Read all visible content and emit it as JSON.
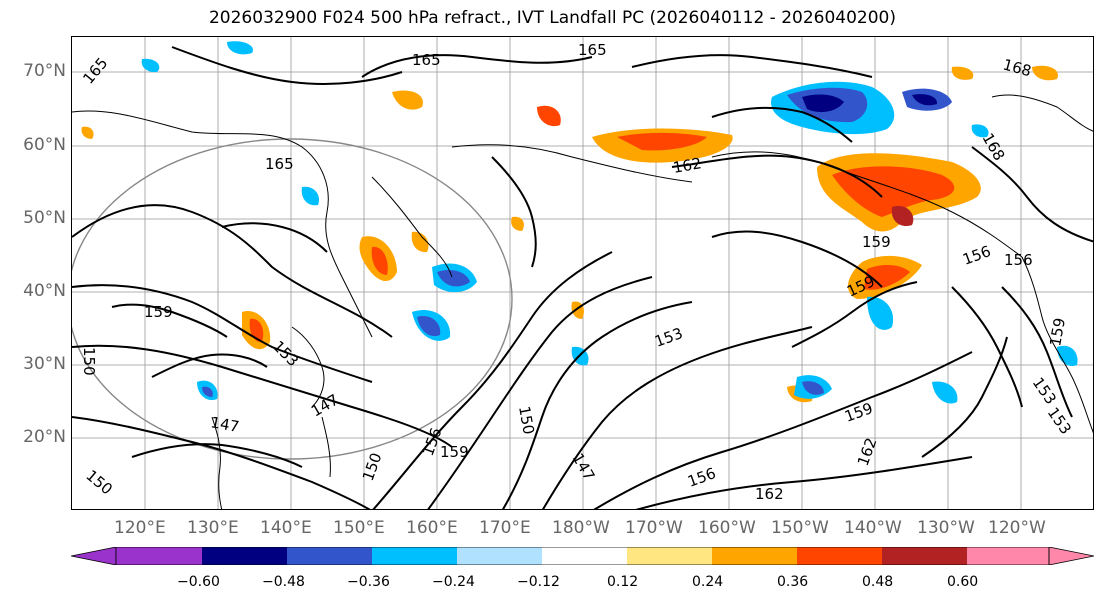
{
  "title": "2026032900 F024 500 hPa refract., IVT Landfall PC (2026040112 - 2026040200)",
  "lat_labels": [
    "70°N",
    "60°N",
    "50°N",
    "40°N",
    "30°N",
    "20°N"
  ],
  "lon_labels": [
    "120°E",
    "130°E",
    "140°E",
    "150°E",
    "160°E",
    "170°E",
    "180°W",
    "170°W",
    "160°W",
    "150°W",
    "140°W",
    "130°W",
    "120°W"
  ],
  "contour_labels": [
    "165",
    "165",
    "165",
    "168",
    "165",
    "162",
    "168",
    "156",
    "156",
    "159",
    "159",
    "159",
    "159",
    "153",
    "153",
    "150",
    "147",
    "147",
    "159",
    "156",
    "150",
    "150",
    "147",
    "156",
    "162",
    "162",
    "159",
    "153",
    "153",
    "150"
  ],
  "colorbar": {
    "ticks": [
      "−0.60",
      "−0.48",
      "−0.36",
      "−0.24",
      "−0.12",
      "0.12",
      "0.24",
      "0.36",
      "0.48",
      "0.60"
    ],
    "colors": [
      "#9933cc",
      "#000080",
      "#3355cc",
      "#00bfff",
      "#b0e2ff",
      "#ffffff",
      "#ffe680",
      "#ffa500",
      "#ff4500",
      "#b22222",
      "#ff88aa"
    ]
  },
  "contour_color": "#000000",
  "coast_color": "#000000",
  "grid_color": "#999999"
}
